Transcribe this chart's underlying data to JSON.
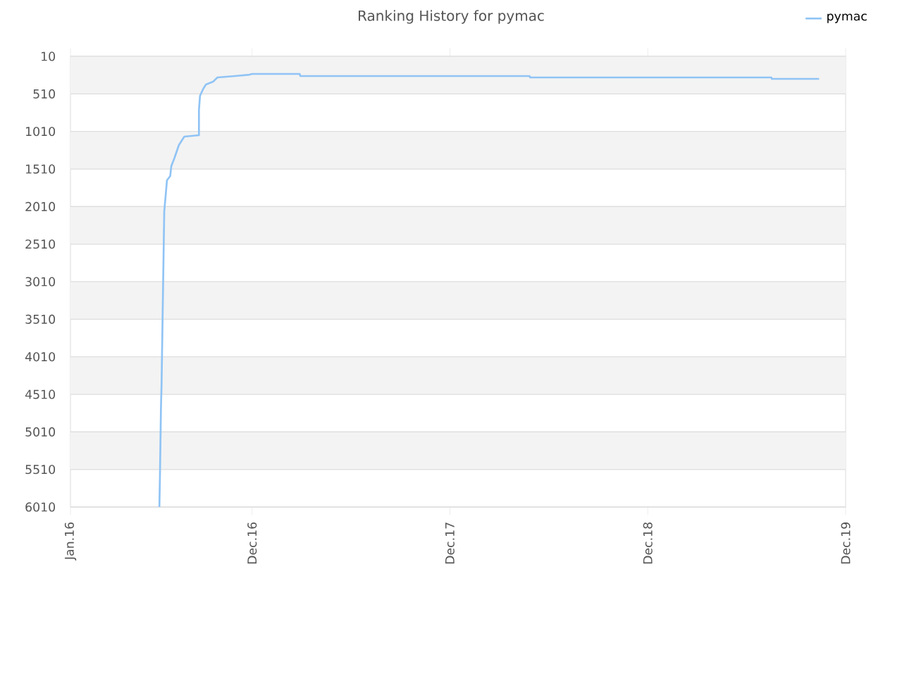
{
  "chart_data": {
    "type": "line",
    "title": "Ranking History for pymac",
    "x": [
      "2016-06-13",
      "2016-06-14",
      "2016-06-16",
      "2016-06-17",
      "2016-06-22",
      "2016-06-25",
      "2016-06-27",
      "2016-07-03",
      "2016-07-05",
      "2016-07-11",
      "2016-07-19",
      "2016-07-29",
      "2016-08-25",
      "2016-08-25",
      "2016-08-27",
      "2016-09-02",
      "2016-09-07",
      "2016-09-20",
      "2016-09-28",
      "2016-10-30",
      "2016-11-26",
      "2016-12-01",
      "2017-02-27",
      "2017-02-28",
      "2018-04-27",
      "2018-04-28",
      "2019-07-17",
      "2019-07-18",
      "2019-10-13"
    ],
    "series": [
      {
        "name": "pymac",
        "color": "#90c4f5",
        "values": [
          6010,
          5635,
          4660,
          4398,
          2073,
          1829,
          1660,
          1604,
          1473,
          1360,
          1191,
          1079,
          1060,
          722,
          535,
          441,
          385,
          348,
          291,
          272,
          254,
          244,
          244,
          272,
          272,
          291,
          291,
          310,
          310
        ]
      }
    ],
    "xlim": [
      "2016-01-01",
      "2019-12-01"
    ],
    "xticks": [
      {
        "value": "2016-01-01",
        "label": "Jan.16"
      },
      {
        "value": "2016-12-01",
        "label": "Dec.16"
      },
      {
        "value": "2017-12-01",
        "label": "Dec.17"
      },
      {
        "value": "2018-12-01",
        "label": "Dec.18"
      },
      {
        "value": "2019-12-01",
        "label": "Dec.19"
      }
    ],
    "ylim": [
      6010,
      10
    ],
    "yticks": [
      10,
      510,
      1010,
      1510,
      2010,
      2510,
      3010,
      3510,
      4010,
      4510,
      5010,
      5510,
      6010
    ],
    "grid": "y",
    "legend": "top right",
    "marker": "none",
    "line_style": "solid"
  }
}
